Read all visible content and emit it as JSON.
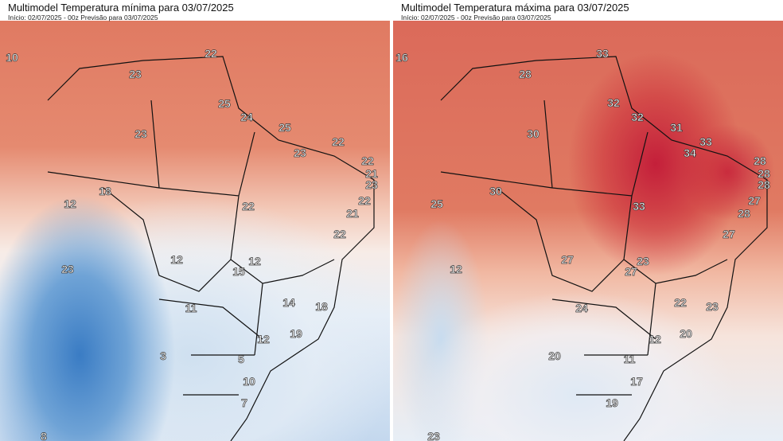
{
  "panels": [
    {
      "title": "Multimodel Temperatura mínima para 03/07/2025",
      "subtitle": "Início: 02/07/2025 - 00z  Previsão para 03/07/2025",
      "values": [
        "10",
        "22",
        "23",
        "25",
        "24",
        "25",
        "23",
        "23",
        "22",
        "22",
        "21",
        "23",
        "22",
        "18",
        "12",
        "22",
        "21",
        "22",
        "12",
        "12",
        "15",
        "23",
        "11",
        "14",
        "18",
        "12",
        "19",
        "3",
        "5",
        "10",
        "7",
        "8"
      ],
      "colors": {
        "warm": "#e07a62",
        "cold": "#3a7cc4"
      }
    },
    {
      "title": "Multimodel Temperatura máxima para 03/07/2025",
      "subtitle": "Início: 02/07/2025 - 00z  Previsão para 03/07/2025",
      "values": [
        "16",
        "33",
        "28",
        "32",
        "32",
        "31",
        "30",
        "33",
        "34",
        "28",
        "28",
        "28",
        "27",
        "30",
        "25",
        "33",
        "28",
        "27",
        "27",
        "23",
        "27",
        "12",
        "24",
        "22",
        "23",
        "12",
        "20",
        "20",
        "11",
        "17",
        "19",
        "23"
      ],
      "colors": {
        "hot": "#c41f3a",
        "warm": "#e07a62",
        "cold": "#c4d8ee"
      }
    }
  ]
}
